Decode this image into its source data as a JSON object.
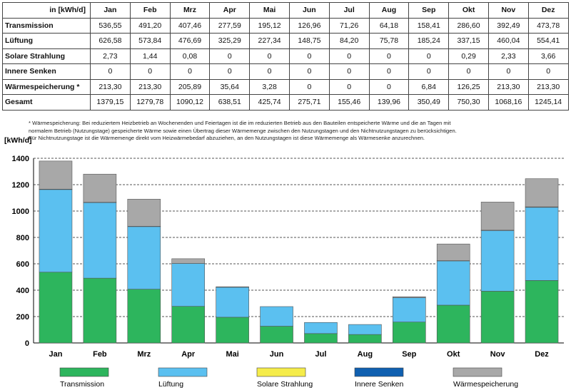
{
  "table": {
    "unit_header": "in [kWh/d]",
    "months": [
      "Jan",
      "Feb",
      "Mrz",
      "Apr",
      "Mai",
      "Jun",
      "Jul",
      "Aug",
      "Sep",
      "Okt",
      "Nov",
      "Dez"
    ],
    "rows": [
      {
        "label": "Transmission",
        "values": [
          "536,55",
          "491,20",
          "407,46",
          "277,59",
          "195,12",
          "126,96",
          "71,26",
          "64,18",
          "158,41",
          "286,60",
          "392,49",
          "473,78"
        ]
      },
      {
        "label": "Lüftung",
        "values": [
          "626,58",
          "573,84",
          "476,69",
          "325,29",
          "227,34",
          "148,75",
          "84,20",
          "75,78",
          "185,24",
          "337,15",
          "460,04",
          "554,41"
        ]
      },
      {
        "label": "Solare Strahlung",
        "values": [
          "2,73",
          "1,44",
          "0,08",
          "0",
          "0",
          "0",
          "0",
          "0",
          "0",
          "0,29",
          "2,33",
          "3,66"
        ]
      },
      {
        "label": "Innere Senken",
        "values": [
          "0",
          "0",
          "0",
          "0",
          "0",
          "0",
          "0",
          "0",
          "0",
          "0",
          "0",
          "0"
        ]
      },
      {
        "label": "Wärmespeicherung *",
        "values": [
          "213,30",
          "213,30",
          "205,89",
          "35,64",
          "3,28",
          "0",
          "0",
          "0",
          "6,84",
          "126,25",
          "213,30",
          "213,30"
        ]
      },
      {
        "label": "Gesamt",
        "values": [
          "1379,15",
          "1279,78",
          "1090,12",
          "638,51",
          "425,74",
          "275,71",
          "155,46",
          "139,96",
          "350,49",
          "750,30",
          "1068,16",
          "1245,14"
        ]
      }
    ]
  },
  "footnote": {
    "line1": "* Wärmespeicherung: Bei reduziertem Heizbetrieb an Wochenenden und Feiertagen ist die im reduzierten Betrieb aus den Bauteilen entspeicherte Wärme und die an Tagen mit",
    "line2": "normalem Betrieb (Nutzungstage) gespeicherte Wärme sowie einen Übertrag dieser Wärmemenge zwischen den Nutzungstagen und den Nichtnutzungstagen zu berücksichtigen.",
    "line3": "Für Nichtnutzungstage ist die Wärmemenge direkt vom Heizwärmebedarf abzuziehen, an den Nutzungstagen ist diese Wärmemenge als Wärmesenke anzurechnen."
  },
  "colors": {
    "transmission": "#2db55d",
    "lueftung": "#5bc0f0",
    "solar": "#f5ec4a",
    "innere": "#1060b0",
    "speicher": "#a8a8a8",
    "gridline": "#555555"
  },
  "chart_data": {
    "type": "bar",
    "stacked": true,
    "ylabel": "[kWh/d]",
    "ylim": [
      0,
      1400
    ],
    "yticks": [
      0,
      200,
      400,
      600,
      800,
      1000,
      1200,
      1400
    ],
    "grid": true,
    "legend_position": "bottom",
    "categories": [
      "Jan",
      "Feb",
      "Mrz",
      "Apr",
      "Mai",
      "Jun",
      "Jul",
      "Aug",
      "Sep",
      "Okt",
      "Nov",
      "Dez"
    ],
    "series": [
      {
        "name": "Transmission",
        "color_key": "transmission",
        "values": [
          536.55,
          491.2,
          407.46,
          277.59,
          195.12,
          126.96,
          71.26,
          64.18,
          158.41,
          286.6,
          392.49,
          473.78
        ]
      },
      {
        "name": "Lüftung",
        "color_key": "lueftung",
        "values": [
          626.58,
          573.84,
          476.69,
          325.29,
          227.34,
          148.75,
          84.2,
          75.78,
          185.24,
          337.15,
          460.04,
          554.41
        ]
      },
      {
        "name": "Solare Strahlung",
        "color_key": "solar",
        "values": [
          2.73,
          1.44,
          0.08,
          0,
          0,
          0,
          0,
          0,
          0,
          0.29,
          2.33,
          3.66
        ]
      },
      {
        "name": "Innere Senken",
        "color_key": "innere",
        "values": [
          0,
          0,
          0,
          0,
          0,
          0,
          0,
          0,
          0,
          0,
          0,
          0
        ]
      },
      {
        "name": "Wärmespeicherung",
        "color_key": "speicher",
        "values": [
          213.3,
          213.3,
          205.89,
          35.64,
          3.28,
          0,
          0,
          0,
          6.84,
          126.25,
          213.3,
          213.3
        ]
      }
    ]
  }
}
